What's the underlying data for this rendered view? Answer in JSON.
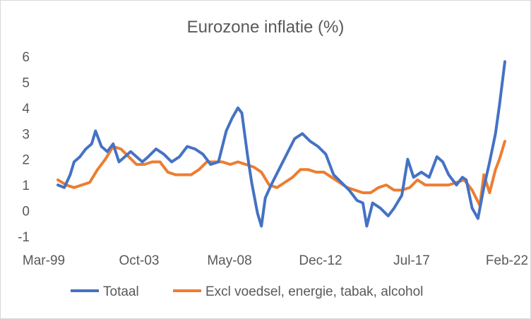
{
  "chart_data": {
    "type": "line",
    "title": "Eurozone inflatie (%)",
    "xlabel": "",
    "ylabel": "",
    "ylim": [
      -1,
      6
    ],
    "yticks": [
      "-1",
      "0",
      "1",
      "2",
      "3",
      "4",
      "5",
      "6"
    ],
    "xtick_labels": [
      "Mar-99",
      "Oct-03",
      "May-08",
      "Dec-12",
      "Jul-17",
      "Feb-22"
    ],
    "x_range_years": [
      1999.17,
      2022.08
    ],
    "grid": false,
    "legend": "bottom",
    "series": [
      {
        "name": "Totaal",
        "color": "#4472C4",
        "x": [
          1999.17,
          1999.5,
          1999.8,
          2000.0,
          2000.3,
          2000.6,
          2000.9,
          2001.1,
          2001.4,
          2001.7,
          2002.0,
          2002.3,
          2002.6,
          2002.9,
          2003.2,
          2003.5,
          2003.8,
          2004.2,
          2004.6,
          2005.0,
          2005.4,
          2005.8,
          2006.2,
          2006.6,
          2007.0,
          2007.4,
          2007.8,
          2008.1,
          2008.4,
          2008.6,
          2008.9,
          2009.1,
          2009.4,
          2009.6,
          2009.8,
          2010.1,
          2010.5,
          2010.9,
          2011.3,
          2011.7,
          2012.1,
          2012.5,
          2012.9,
          2013.3,
          2013.7,
          2014.1,
          2014.5,
          2014.8,
          2015.0,
          2015.3,
          2015.7,
          2016.1,
          2016.4,
          2016.8,
          2017.1,
          2017.4,
          2017.8,
          2018.2,
          2018.6,
          2018.9,
          2019.2,
          2019.6,
          2019.9,
          2020.1,
          2020.4,
          2020.7,
          2021.0,
          2021.3,
          2021.6,
          2021.8,
          2021.95,
          2022.08
        ],
        "values": [
          1.0,
          0.9,
          1.4,
          1.9,
          2.1,
          2.4,
          2.6,
          3.1,
          2.5,
          2.3,
          2.6,
          1.9,
          2.1,
          2.3,
          2.1,
          1.9,
          2.1,
          2.4,
          2.2,
          1.9,
          2.1,
          2.5,
          2.4,
          2.2,
          1.8,
          1.9,
          3.1,
          3.6,
          4.0,
          3.8,
          2.1,
          1.1,
          -0.1,
          -0.6,
          0.5,
          1.0,
          1.6,
          2.2,
          2.8,
          3.0,
          2.7,
          2.5,
          2.2,
          1.4,
          1.1,
          0.8,
          0.4,
          0.3,
          -0.6,
          0.3,
          0.1,
          -0.2,
          0.1,
          0.6,
          2.0,
          1.3,
          1.5,
          1.3,
          2.1,
          1.9,
          1.4,
          1.0,
          1.3,
          1.2,
          0.1,
          -0.3,
          0.9,
          1.9,
          3.0,
          4.1,
          5.0,
          5.8
        ]
      },
      {
        "name": "Excl voedsel, energie, tabak, alcohol",
        "color": "#ED7D31",
        "x": [
          1999.17,
          1999.6,
          2000.0,
          2000.4,
          2000.8,
          2001.2,
          2001.6,
          2002.0,
          2002.4,
          2002.8,
          2003.2,
          2003.6,
          2004.0,
          2004.4,
          2004.8,
          2005.2,
          2005.6,
          2006.0,
          2006.4,
          2006.8,
          2007.2,
          2007.6,
          2008.0,
          2008.4,
          2008.8,
          2009.2,
          2009.6,
          2010.0,
          2010.4,
          2010.8,
          2011.2,
          2011.6,
          2012.0,
          2012.4,
          2012.8,
          2013.2,
          2013.6,
          2014.0,
          2014.4,
          2014.8,
          2015.2,
          2015.6,
          2016.0,
          2016.4,
          2016.8,
          2017.2,
          2017.6,
          2018.0,
          2018.4,
          2018.8,
          2019.2,
          2019.6,
          2020.0,
          2020.4,
          2020.8,
          2021.0,
          2021.3,
          2021.6,
          2021.8,
          2022.08
        ],
        "values": [
          1.2,
          1.0,
          0.9,
          1.0,
          1.1,
          1.6,
          2.0,
          2.5,
          2.4,
          2.1,
          1.8,
          1.8,
          1.9,
          1.9,
          1.5,
          1.4,
          1.4,
          1.4,
          1.6,
          1.9,
          1.9,
          1.9,
          1.8,
          1.9,
          1.8,
          1.7,
          1.5,
          1.0,
          0.9,
          1.1,
          1.3,
          1.6,
          1.6,
          1.5,
          1.5,
          1.3,
          1.1,
          0.9,
          0.8,
          0.7,
          0.7,
          0.9,
          1.0,
          0.8,
          0.8,
          0.9,
          1.2,
          1.0,
          1.0,
          1.0,
          1.0,
          1.1,
          1.2,
          0.8,
          0.2,
          1.4,
          0.7,
          1.6,
          2.0,
          2.7
        ]
      }
    ]
  }
}
